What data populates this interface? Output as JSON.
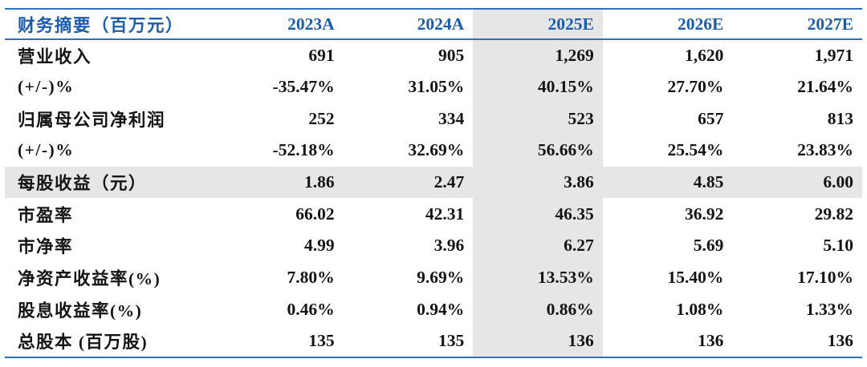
{
  "table": {
    "header": {
      "label": "财务摘要（百万元）",
      "columns": [
        "2023A",
        "2024A",
        "2025E",
        "2026E",
        "2027E"
      ]
    },
    "rows": [
      {
        "label": "营业收入",
        "values": [
          "691",
          "905",
          "1,269",
          "1,620",
          "1,971"
        ]
      },
      {
        "label": "(+/-)%",
        "values": [
          "-35.47%",
          "31.05%",
          "40.15%",
          "27.70%",
          "21.64%"
        ]
      },
      {
        "label": "归属母公司净利润",
        "values": [
          "252",
          "334",
          "523",
          "657",
          "813"
        ]
      },
      {
        "label": "(+/-)%",
        "values": [
          "-52.18%",
          "32.69%",
          "56.66%",
          "25.54%",
          "23.83%"
        ]
      },
      {
        "label": "每股收益（元）",
        "values": [
          "1.86",
          "2.47",
          "3.86",
          "4.85",
          "6.00"
        ],
        "highlight_row": true
      },
      {
        "label": "市盈率",
        "values": [
          "66.02",
          "42.31",
          "46.35",
          "36.92",
          "29.82"
        ]
      },
      {
        "label": "市净率",
        "values": [
          "4.99",
          "3.96",
          "6.27",
          "5.69",
          "5.10"
        ]
      },
      {
        "label": "净资产收益率(%)",
        "values": [
          "7.80%",
          "9.69%",
          "13.53%",
          "15.40%",
          "17.10%"
        ]
      },
      {
        "label": "股息收益率(%)",
        "values": [
          "0.46%",
          "0.94%",
          "0.86%",
          "1.08%",
          "1.33%"
        ]
      },
      {
        "label": "总股本 (百万股)",
        "values": [
          "135",
          "135",
          "136",
          "136",
          "136"
        ]
      }
    ],
    "highlight_column": "2025E",
    "colors": {
      "header_text": "#1B5CAB",
      "border_line": "#2E74B5",
      "highlight_bg": "#E7E6E6",
      "body_text": "#141414"
    }
  }
}
